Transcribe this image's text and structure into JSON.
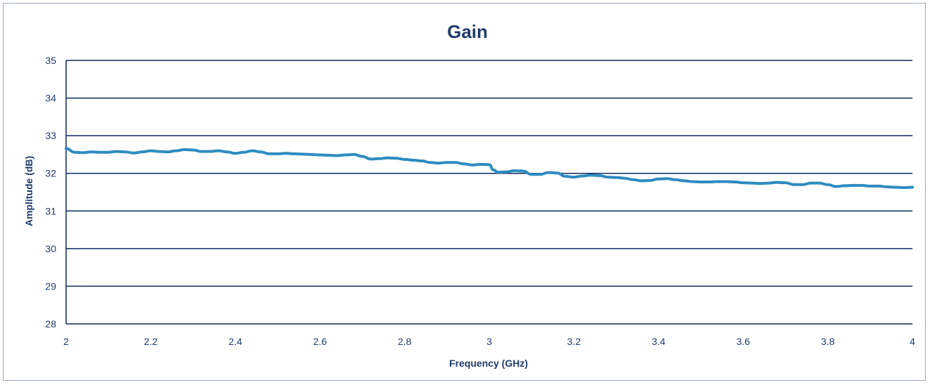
{
  "chart_data": {
    "type": "line",
    "title": "Gain",
    "xlabel": "Frequency (GHz)",
    "ylabel": "Amplitude (dB)",
    "xlim": [
      2,
      4
    ],
    "ylim": [
      28,
      35
    ],
    "xticks": [
      "2",
      "2.2",
      "2.4",
      "2.6",
      "2.8",
      "3",
      "3.2",
      "3.4",
      "3.6",
      "3.8",
      "4"
    ],
    "yticks": [
      "28",
      "29",
      "30",
      "31",
      "32",
      "33",
      "34",
      "35"
    ],
    "grid": true,
    "legend": "none",
    "series": [
      {
        "color": "#2e8bc0",
        "x": [
          2.0,
          2.02,
          2.04,
          2.06,
          2.08,
          2.1,
          2.12,
          2.14,
          2.16,
          2.18,
          2.2,
          2.22,
          2.24,
          2.26,
          2.28,
          2.3,
          2.32,
          2.34,
          2.36,
          2.38,
          2.4,
          2.42,
          2.44,
          2.46,
          2.48,
          2.5,
          2.52,
          2.54,
          2.56,
          2.58,
          2.6,
          2.62,
          2.64,
          2.66,
          2.68,
          2.7,
          2.72,
          2.74,
          2.76,
          2.78,
          2.8,
          2.82,
          2.84,
          2.86,
          2.88,
          2.9,
          2.92,
          2.94,
          2.96,
          2.98,
          3.0,
          3.01,
          3.02,
          3.04,
          3.06,
          3.08,
          3.1,
          3.12,
          3.14,
          3.16,
          3.18,
          3.2,
          3.22,
          3.24,
          3.26,
          3.28,
          3.3,
          3.32,
          3.34,
          3.36,
          3.38,
          3.4,
          3.42,
          3.44,
          3.46,
          3.48,
          3.5,
          3.52,
          3.54,
          3.56,
          3.58,
          3.6,
          3.62,
          3.64,
          3.66,
          3.68,
          3.7,
          3.72,
          3.74,
          3.76,
          3.78,
          3.8,
          3.82,
          3.84,
          3.86,
          3.88,
          3.9,
          3.92,
          3.94,
          3.96,
          3.98,
          4.0
        ],
        "y": [
          32.66,
          32.56,
          32.55,
          32.57,
          32.56,
          32.56,
          32.58,
          32.57,
          32.54,
          32.57,
          32.6,
          32.58,
          32.57,
          32.6,
          32.63,
          32.62,
          32.58,
          32.58,
          32.6,
          32.57,
          32.53,
          32.56,
          32.6,
          32.57,
          32.52,
          32.52,
          32.53,
          32.52,
          32.51,
          32.5,
          32.49,
          32.48,
          32.47,
          32.49,
          32.5,
          32.45,
          32.38,
          32.39,
          32.41,
          32.4,
          32.37,
          32.35,
          32.33,
          32.29,
          32.27,
          32.29,
          32.29,
          32.25,
          32.22,
          32.24,
          32.23,
          32.09,
          32.03,
          32.04,
          32.07,
          32.06,
          31.97,
          31.97,
          32.02,
          32.01,
          31.92,
          31.9,
          31.93,
          31.95,
          31.94,
          31.9,
          31.89,
          31.87,
          31.83,
          31.8,
          31.81,
          31.85,
          31.86,
          31.83,
          31.8,
          31.78,
          31.77,
          31.77,
          31.78,
          31.78,
          31.77,
          31.75,
          31.74,
          31.73,
          31.74,
          31.76,
          31.75,
          31.7,
          31.7,
          31.74,
          31.74,
          31.7,
          31.65,
          31.67,
          31.68,
          31.68,
          31.66,
          31.66,
          31.64,
          31.63,
          31.62,
          31.63
        ]
      }
    ]
  }
}
